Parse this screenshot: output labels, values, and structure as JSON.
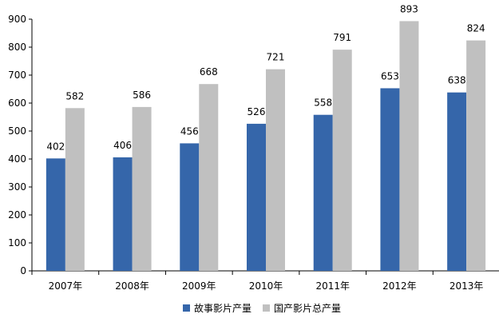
{
  "chart_data": {
    "type": "bar",
    "title": "",
    "xlabel": "",
    "ylabel": "",
    "ylim": [
      0,
      900
    ],
    "yticks": [
      0,
      100,
      200,
      300,
      400,
      500,
      600,
      700,
      800,
      900
    ],
    "categories": [
      "2007年",
      "2008年",
      "2009年",
      "2010年",
      "2011年",
      "2012年",
      "2013年"
    ],
    "series": [
      {
        "name": "故事影片产量",
        "color": "#3566AA",
        "values": [
          402,
          406,
          456,
          526,
          558,
          653,
          638
        ]
      },
      {
        "name": "国产影片总产量",
        "color": "#C0C0C0",
        "values": [
          582,
          586,
          668,
          721,
          791,
          893,
          824
        ]
      }
    ],
    "grid": false,
    "data_labels": true,
    "legend_position": "bottom-center"
  }
}
